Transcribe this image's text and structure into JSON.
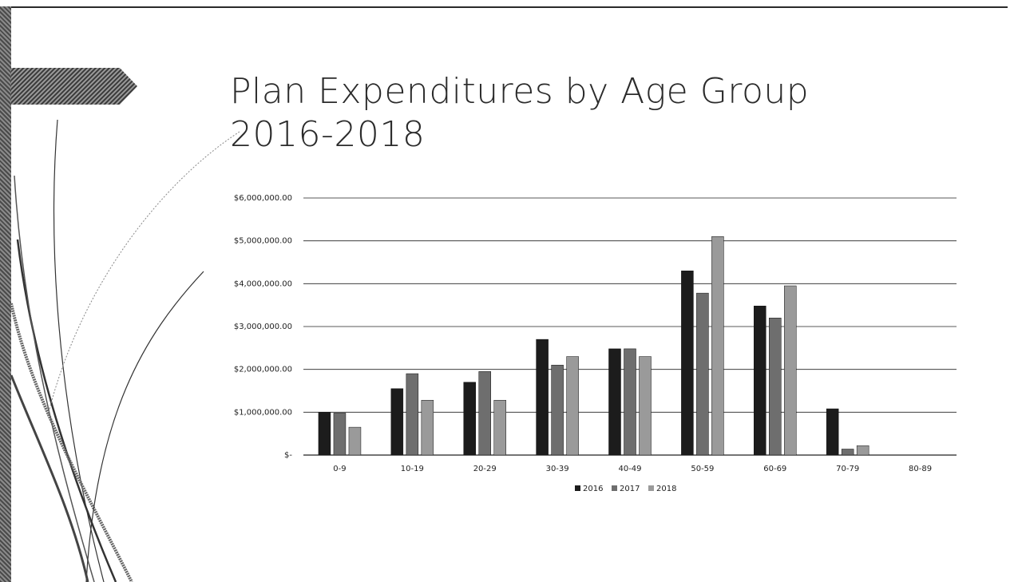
{
  "slide": {
    "title_line1": "Plan Expenditures by Age Group",
    "title_line2": "2016-2018"
  },
  "chart_data": {
    "type": "bar",
    "title": "",
    "xlabel": "",
    "ylabel": "",
    "categories": [
      "0-9",
      "10-19",
      "20-29",
      "30-39",
      "40-49",
      "50-59",
      "60-69",
      "70-79",
      "80-89"
    ],
    "series": [
      {
        "name": "2016",
        "values": [
          1000000,
          1550000,
          1700000,
          2700000,
          2480000,
          4300000,
          3480000,
          1080000,
          0
        ]
      },
      {
        "name": "2017",
        "values": [
          980000,
          1900000,
          1950000,
          2100000,
          2480000,
          3780000,
          3200000,
          140000,
          0
        ]
      },
      {
        "name": "2018",
        "values": [
          650000,
          1280000,
          1280000,
          2300000,
          2300000,
          5100000,
          3950000,
          220000,
          0
        ]
      }
    ],
    "ylim": [
      0,
      6000000
    ],
    "y_ticks": [
      0,
      1000000,
      2000000,
      3000000,
      4000000,
      5000000,
      6000000
    ],
    "y_tick_labels": [
      "$-",
      "$1,000,000.00",
      "$2,000,000.00",
      "$3,000,000.00",
      "$4,000,000.00",
      "$5,000,000.00",
      "$6,000,000.00"
    ],
    "grid": true,
    "legend_position": "bottom",
    "colors": [
      "#1c1c1c",
      "#6e6e6e",
      "#9a9a9a"
    ]
  }
}
